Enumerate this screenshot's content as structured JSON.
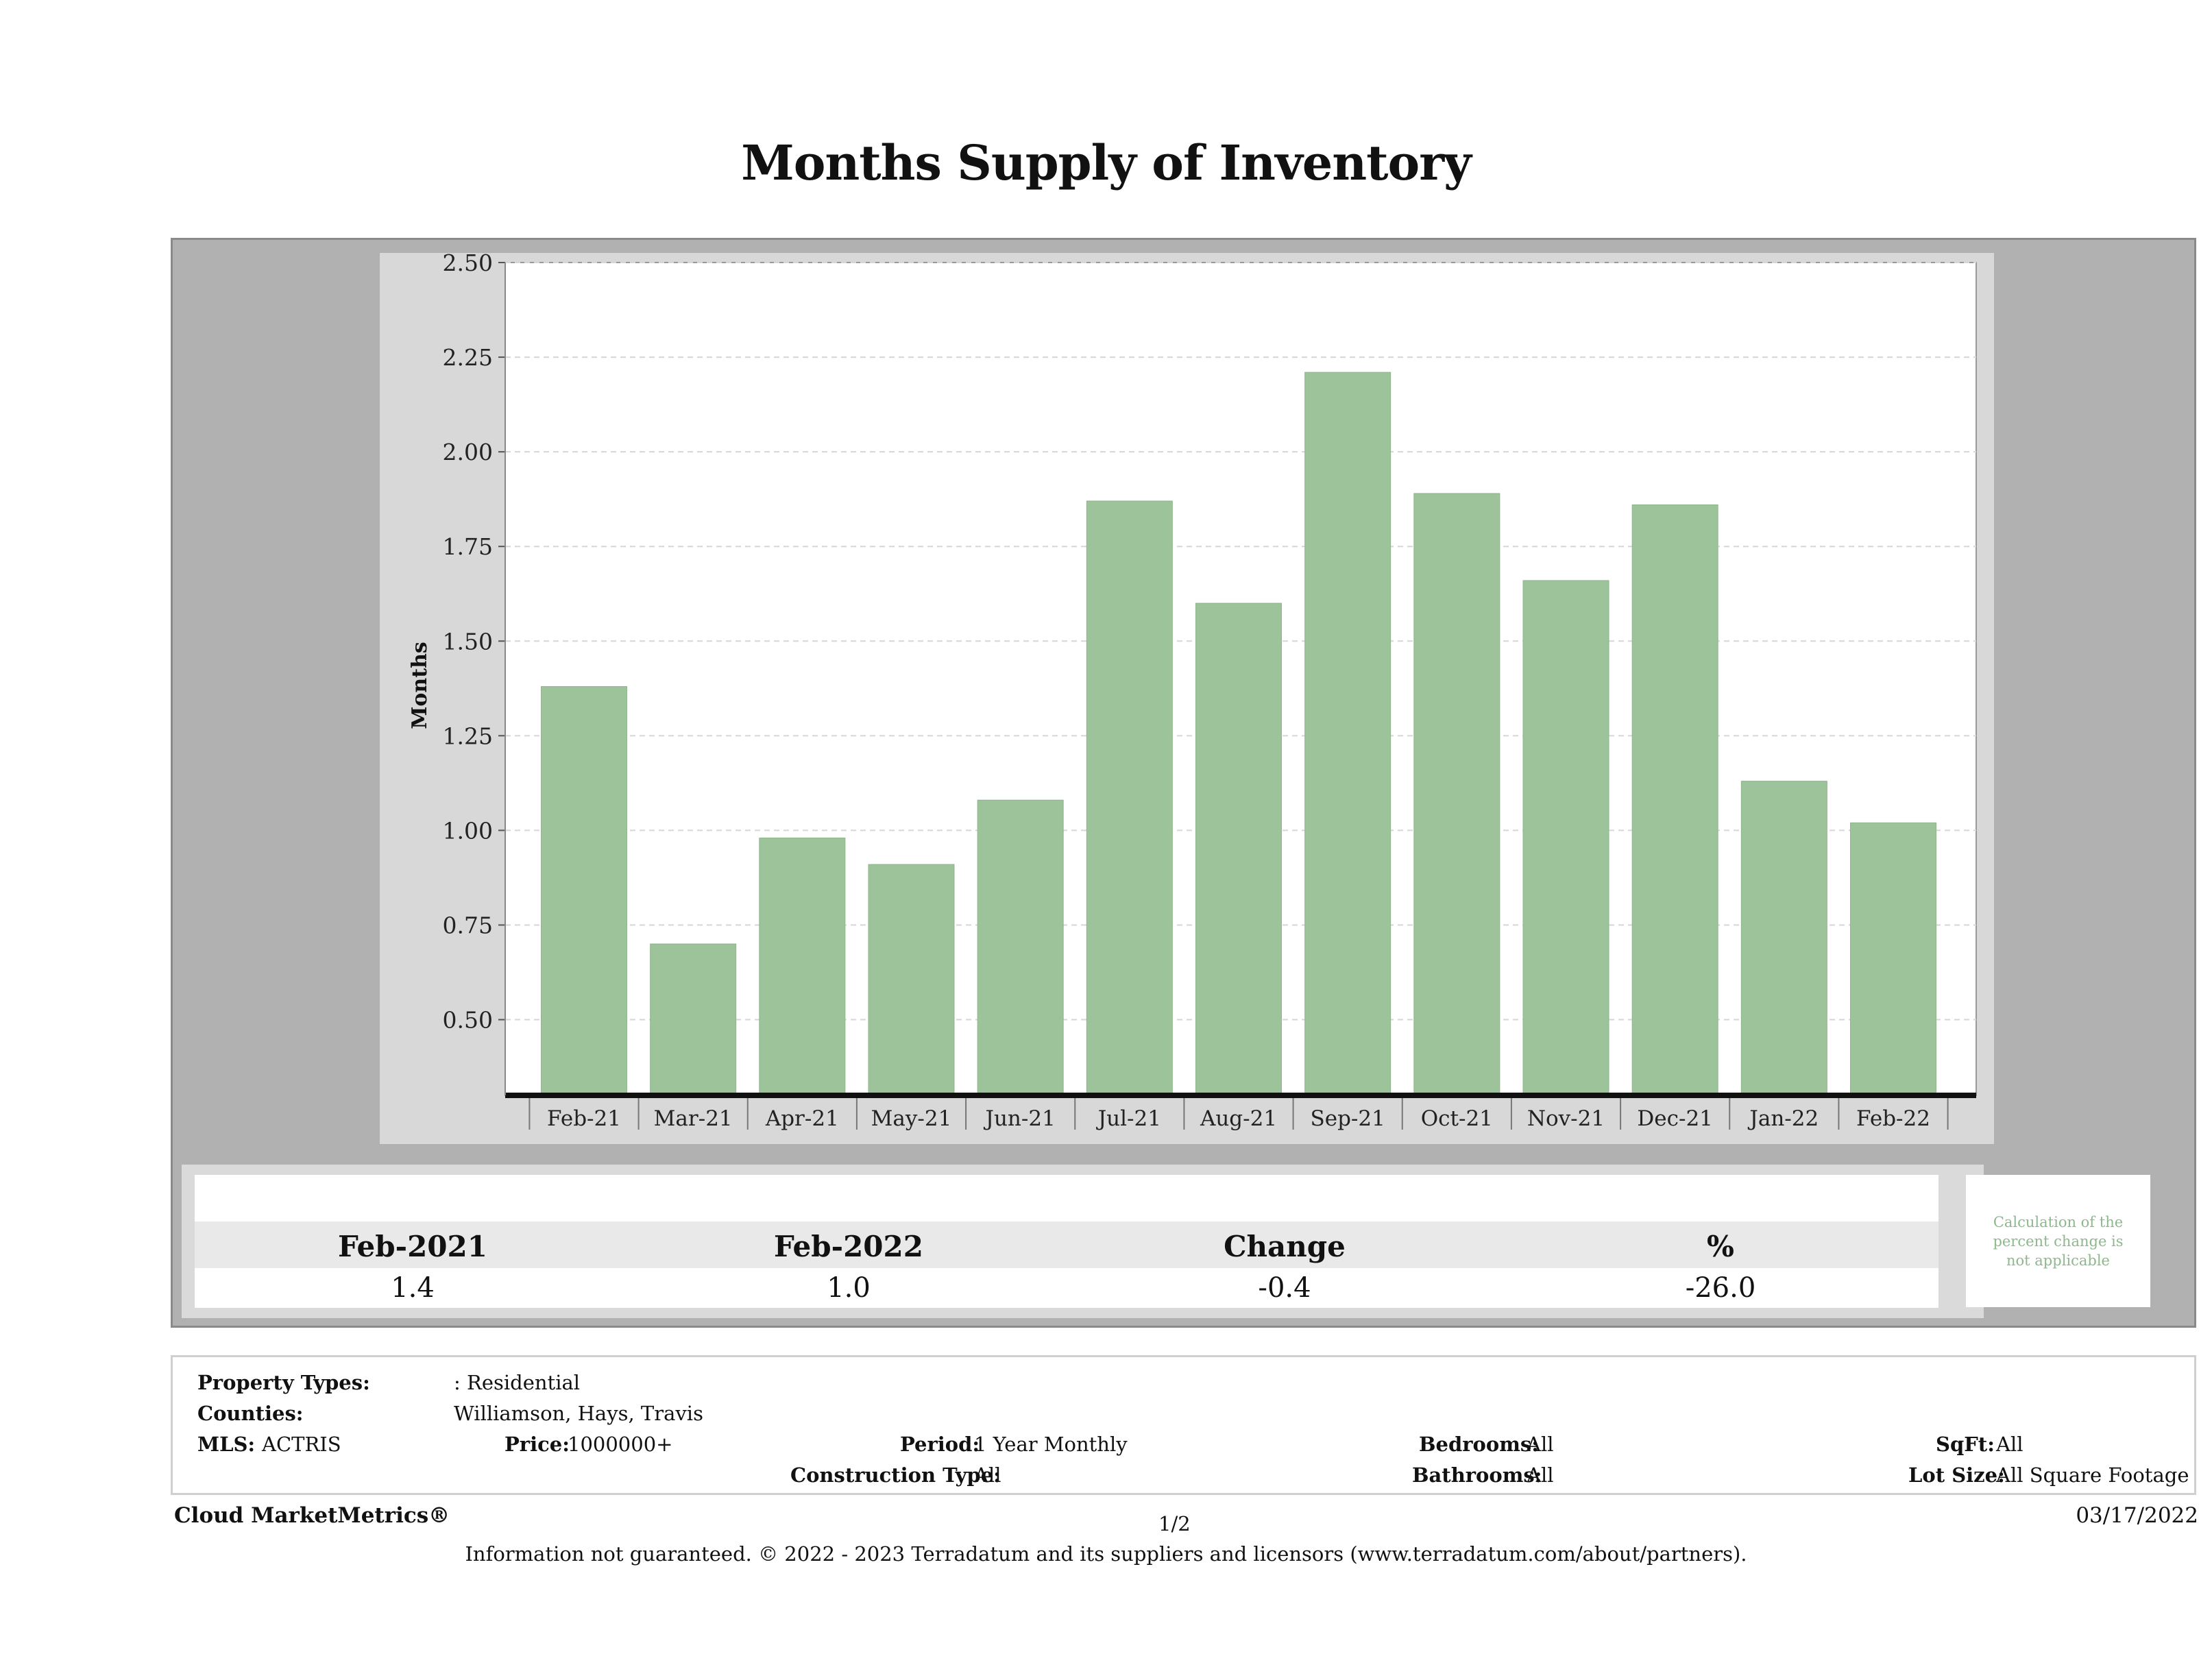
{
  "page": {
    "title": "Months Supply of Inventory"
  },
  "chart_data": {
    "type": "bar",
    "title": "Months Supply of Inventory",
    "ylabel": "Months",
    "xlabel": "",
    "ylim": [
      0.3,
      2.5
    ],
    "yticks": [
      "0.50",
      "0.75",
      "1.00",
      "1.25",
      "1.50",
      "1.75",
      "2.00",
      "2.25",
      "2.50"
    ],
    "grid": true,
    "categories": [
      "Feb-21",
      "Mar-21",
      "Apr-21",
      "May-21",
      "Jun-21",
      "Jul-21",
      "Aug-21",
      "Sep-21",
      "Oct-21",
      "Nov-21",
      "Dec-21",
      "Jan-22",
      "Feb-22"
    ],
    "values": [
      1.38,
      0.7,
      0.98,
      0.91,
      1.08,
      1.87,
      1.6,
      2.21,
      1.89,
      1.66,
      1.86,
      1.13,
      1.02
    ],
    "bar_color": "#9dc39a"
  },
  "stats": {
    "headers": [
      "Feb-2021",
      "Feb-2022",
      "Change",
      "%"
    ],
    "values": [
      "1.4",
      "1.0",
      "-0.4",
      "-26.0"
    ],
    "note": "Calculation of the percent change is not applicable"
  },
  "filters": {
    "property_types_label": "Property Types:",
    "property_types_value": ": Residential",
    "counties_label": "Counties:",
    "counties_value": "Williamson, Hays, Travis",
    "mls_label": "MLS:",
    "mls_value": "ACTRIS",
    "price_label": "Price:",
    "price_value": "1000000+",
    "period_label": "Period:",
    "period_value": "1 Year Monthly",
    "construction_label": "Construction Type:",
    "construction_value": "All",
    "bedrooms_label": "Bedrooms:",
    "bedrooms_value": "All",
    "bathrooms_label": "Bathrooms:",
    "bathrooms_value": "All",
    "sqft_label": "SqFt:",
    "sqft_value": "All",
    "lotsize_label": "Lot Size:",
    "lotsize_value": "All Square Footage"
  },
  "footer": {
    "brand": "Cloud MarketMetrics®",
    "page": "1/2",
    "date": "03/17/2022",
    "disclaimer": "Information not guaranteed. © 2022 - 2023 Terradatum and its suppliers and licensors (www.terradatum.com/about/partners)."
  }
}
